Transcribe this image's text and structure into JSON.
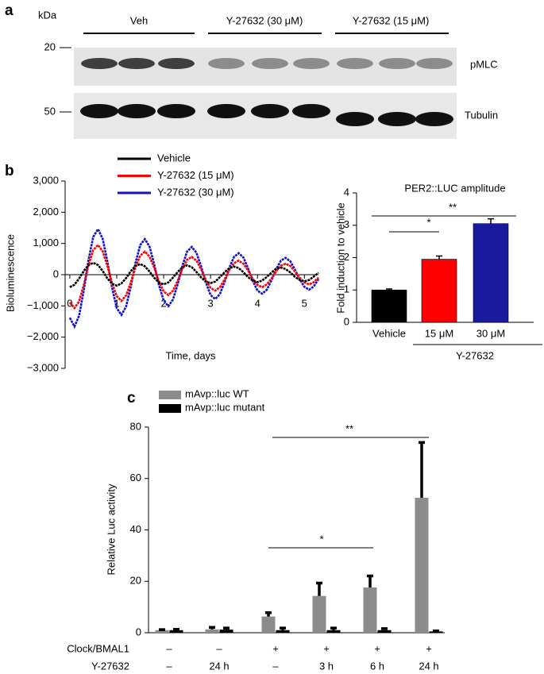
{
  "panel_labels": [
    "a",
    "b",
    "c"
  ],
  "blot": {
    "unit": "kDa",
    "markers": [
      20,
      50
    ],
    "lanes": [
      "Veh",
      "Y-27632 (30 μM)",
      "Y-27632 (15 μM)"
    ],
    "bands": [
      "pMLC",
      "Tubulin"
    ]
  },
  "chart_data": [
    {
      "type": "line",
      "x_label": "Time, days",
      "y_label": "Bioluminescence",
      "x": [
        0,
        0.1,
        0.2,
        0.3,
        0.4,
        0.5,
        0.6,
        0.7,
        0.8,
        0.9,
        1,
        1.1,
        1.2,
        1.3,
        1.4,
        1.5,
        1.6,
        1.7,
        1.8,
        1.9,
        2,
        2.1,
        2.2,
        2.3,
        2.4,
        2.5,
        2.6,
        2.7,
        2.8,
        2.9,
        3,
        3.1,
        3.2,
        3.3,
        3.4,
        3.5,
        3.6,
        3.7,
        3.8,
        3.9,
        4,
        4.1,
        4.2,
        4.3,
        4.4,
        4.5,
        4.6,
        4.7,
        4.8,
        4.9,
        5,
        5.1,
        5.2,
        5.3
      ],
      "series": [
        {
          "name": "Vehicle",
          "color": "#000000",
          "values": [
            -400,
            -320,
            -120,
            120,
            310,
            380,
            310,
            120,
            -120,
            -290,
            -350,
            -280,
            -110,
            110,
            280,
            340,
            270,
            100,
            -100,
            -250,
            -310,
            -250,
            -90,
            90,
            240,
            300,
            240,
            90,
            -90,
            -220,
            -270,
            -220,
            -80,
            80,
            210,
            260,
            210,
            80,
            -80,
            -190,
            -240,
            -190,
            -70,
            70,
            190,
            230,
            180,
            70,
            -70,
            -170,
            -210,
            -170,
            -60,
            60
          ]
        },
        {
          "name": "Y-27632 (15 μM)",
          "color": "#ff0000",
          "values": [
            -890,
            -1070,
            -850,
            -320,
            310,
            790,
            950,
            750,
            280,
            -270,
            -690,
            -840,
            -660,
            -250,
            240,
            610,
            740,
            580,
            220,
            -210,
            -540,
            -650,
            -510,
            -190,
            190,
            480,
            570,
            450,
            170,
            -170,
            -420,
            -510,
            -400,
            -150,
            150,
            370,
            450,
            350,
            130,
            -130,
            -330,
            -400,
            -310,
            -120,
            110,
            290,
            350,
            280,
            100,
            -100,
            -250,
            -310,
            -240,
            -90
          ]
        },
        {
          "name": "Y-27632 (30 μM)",
          "color": "#1010d0",
          "values": [
            -1380,
            -1660,
            -1310,
            -490,
            480,
            1210,
            1460,
            1150,
            430,
            -420,
            -1070,
            -1290,
            -1020,
            -380,
            370,
            945,
            1140,
            900,
            330,
            -330,
            -830,
            -1010,
            -790,
            -300,
            290,
            740,
            890,
            700,
            260,
            -250,
            -650,
            -780,
            -620,
            -230,
            220,
            570,
            690,
            550,
            200,
            -200,
            -510,
            -610,
            -480,
            -180,
            180,
            450,
            540,
            430,
            160,
            -150,
            -390,
            -480,
            -380,
            -140
          ]
        }
      ],
      "xlim": [
        -0.1,
        5.3
      ],
      "xticks": [
        0,
        1,
        2,
        3,
        4,
        5
      ],
      "ylim": [
        -3000,
        3000
      ],
      "yticks": [
        {
          "value": -3000,
          "label": "−3,000"
        },
        {
          "value": -2000,
          "label": "−2,000"
        },
        {
          "value": -1000,
          "label": "−1,000"
        },
        0,
        {
          "value": 1000,
          "label": "1,000"
        },
        {
          "value": 2000,
          "label": "2,000"
        },
        {
          "value": 3000,
          "label": "3,000"
        }
      ]
    },
    {
      "type": "bar",
      "title": "PER2::LUC amplitude",
      "y_label": "Fold induction to vehicle",
      "categories": [
        "Vehicle",
        "15 μM",
        "30 μM"
      ],
      "values": [
        1,
        1.95,
        3.05
      ],
      "errors": [
        0.03,
        0.1,
        0.15
      ],
      "colors": [
        "#000000",
        "#ff0000",
        "#1a1a9e"
      ],
      "group_label": "Y-27632",
      "significance": [
        "*",
        "**"
      ],
      "ylim": [
        0,
        4
      ],
      "yticks": [
        0,
        1,
        2,
        3,
        4
      ]
    },
    {
      "type": "grouped_bar",
      "y_label": "Relative Luc activity",
      "series": [
        {
          "name": "mAvp::luc WT",
          "color": "#8c8c8c",
          "values": [
            1,
            1.3,
            6.3,
            14.3,
            17.6,
            52.5
          ],
          "errors": [
            0.2,
            0.8,
            1.5,
            5,
            4.5,
            21.5
          ]
        },
        {
          "name": "mAvp::luc mutant",
          "color": "#000000",
          "values": [
            1,
            1.2,
            1,
            1,
            1,
            0.5
          ],
          "errors": [
            0.3,
            0.6,
            0.8,
            0.8,
            0.6,
            0.2
          ]
        }
      ],
      "conditions": [
        {
          "label": "Clock/BMAL1",
          "values": [
            "–",
            "–",
            "+",
            "+",
            "+",
            "+"
          ]
        },
        {
          "label": "Y-27632",
          "values": [
            "–",
            "24 h",
            "–",
            "3 h",
            "6 h",
            "24 h"
          ]
        }
      ],
      "significance": [
        "*",
        "**"
      ],
      "ylim": [
        0,
        80
      ],
      "yticks": [
        0,
        20,
        40,
        60,
        80
      ]
    }
  ]
}
